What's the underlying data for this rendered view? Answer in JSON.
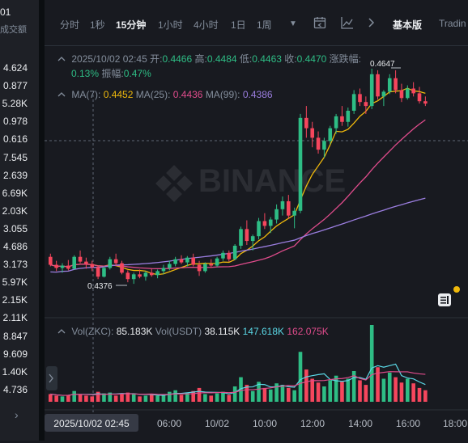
{
  "left_panel": {
    "header": "01",
    "column_label": "成交额",
    "values": [
      "4.624",
      "0.877",
      "5.28K",
      "0.978",
      "0.616",
      "7.545",
      "2.639",
      "6.69K",
      "2.03K",
      "3.055",
      "4.686",
      "3.173",
      "5.97K",
      "2.15K",
      "2.11K",
      "8.847",
      "9.609",
      "1.40K",
      "4.736"
    ]
  },
  "toolbar": {
    "intervals": [
      "分时",
      "1秒",
      "15分钟",
      "1小时",
      "4小时",
      "1日",
      "1周"
    ],
    "active_interval": "15分钟",
    "dropdown_icon": "caret-down-icon",
    "tool_icons": [
      "indicator-settings-icon",
      "chart-type-icon",
      "more-icon"
    ],
    "basic_label": "基本版",
    "tradingview_label": "Tradin"
  },
  "info": {
    "datetime": "2025/10/02 02:45",
    "open_label": "开:",
    "open": "0.4466",
    "high_label": "高:",
    "high": "0.4484",
    "low_label": "低:",
    "low": "0.4463",
    "close_label": "收:",
    "close": "0.4470",
    "change_label": "涨跌幅:",
    "change": "0.13%",
    "amplitude_label": "振幅:",
    "amplitude": "0.47%"
  },
  "ma": {
    "ma7_label": "MA(7):",
    "ma7": "0.4452",
    "ma25_label": "MA(25):",
    "ma25": "0.4436",
    "ma99_label": "MA(99):",
    "ma99": "0.4386"
  },
  "volume_info": {
    "vol_label": "Vol(ZKC):",
    "vol": "85.183K",
    "vol_usdt_label": "Vol(USDT)",
    "vol_usdt": "38.115K",
    "ma_vol_1": "147.618K",
    "ma_vol_2": "162.075K"
  },
  "annotations": {
    "high_marker": "0.4647",
    "low_marker": "0.4376"
  },
  "watermark": "BINANCE",
  "time_axis": {
    "crosshair_label": "2025/10/02 02:45",
    "ticks": [
      "06:00",
      "10/02",
      "10:00",
      "12:00",
      "14:00",
      "16:00",
      "18:00"
    ]
  },
  "colors": {
    "up": "#2ebd85",
    "down": "#f6465d",
    "ma7": "#f0b90b",
    "ma25": "#e04c8c",
    "ma99": "#9b7ee0",
    "background": "#181a20"
  },
  "chart_data": {
    "type": "candlestick",
    "interval": "15分钟",
    "candles_ohlc": [
      [
        0.441,
        0.4414,
        0.4398,
        0.44
      ],
      [
        0.44,
        0.4405,
        0.4392,
        0.4396
      ],
      [
        0.4396,
        0.4402,
        0.439,
        0.4399
      ],
      [
        0.4399,
        0.4406,
        0.4393,
        0.4395
      ],
      [
        0.4395,
        0.4412,
        0.4394,
        0.441
      ],
      [
        0.441,
        0.4418,
        0.4402,
        0.4404
      ],
      [
        0.4404,
        0.4409,
        0.4395,
        0.4401
      ],
      [
        0.4401,
        0.4405,
        0.4392,
        0.4397
      ],
      [
        0.4397,
        0.4399,
        0.4382,
        0.4385
      ],
      [
        0.4385,
        0.4398,
        0.4384,
        0.4396
      ],
      [
        0.4396,
        0.441,
        0.4394,
        0.4407
      ],
      [
        0.4407,
        0.4414,
        0.4399,
        0.4402
      ],
      [
        0.4402,
        0.4405,
        0.4388,
        0.439
      ],
      [
        0.439,
        0.4393,
        0.4378,
        0.4382
      ],
      [
        0.4382,
        0.439,
        0.4376,
        0.4388
      ],
      [
        0.4388,
        0.4394,
        0.4383,
        0.4385
      ],
      [
        0.4385,
        0.4392,
        0.438,
        0.439
      ],
      [
        0.439,
        0.4395,
        0.4385,
        0.4387
      ],
      [
        0.4387,
        0.4394,
        0.4383,
        0.4392
      ],
      [
        0.4392,
        0.44,
        0.4388,
        0.4396
      ],
      [
        0.4396,
        0.4405,
        0.4393,
        0.4401
      ],
      [
        0.4401,
        0.441,
        0.4398,
        0.4407
      ],
      [
        0.4407,
        0.4412,
        0.4401,
        0.4403
      ],
      [
        0.4403,
        0.4411,
        0.4398,
        0.4409
      ],
      [
        0.4409,
        0.4414,
        0.4398,
        0.44
      ],
      [
        0.44,
        0.4405,
        0.4386,
        0.4392
      ],
      [
        0.4392,
        0.4403,
        0.439,
        0.4401
      ],
      [
        0.4401,
        0.4407,
        0.4396,
        0.4399
      ],
      [
        0.4399,
        0.441,
        0.4397,
        0.4408
      ],
      [
        0.4408,
        0.4418,
        0.4405,
        0.4415
      ],
      [
        0.4415,
        0.4418,
        0.4404,
        0.4407
      ],
      [
        0.4407,
        0.4426,
        0.4406,
        0.4424
      ],
      [
        0.4424,
        0.4448,
        0.442,
        0.4445
      ],
      [
        0.4445,
        0.4456,
        0.4425,
        0.443
      ],
      [
        0.443,
        0.4438,
        0.4418,
        0.4436
      ],
      [
        0.4436,
        0.4459,
        0.4432,
        0.4455
      ],
      [
        0.4455,
        0.4465,
        0.4445,
        0.4449
      ],
      [
        0.4449,
        0.446,
        0.444,
        0.4457
      ],
      [
        0.4457,
        0.4476,
        0.4452,
        0.447
      ],
      [
        0.447,
        0.4486,
        0.4462,
        0.448
      ],
      [
        0.448,
        0.4488,
        0.4458,
        0.4462
      ],
      [
        0.4462,
        0.4472,
        0.4446,
        0.4468
      ],
      [
        0.4468,
        0.459,
        0.4465,
        0.4585
      ],
      [
        0.4585,
        0.46,
        0.456,
        0.4572
      ],
      [
        0.4572,
        0.458,
        0.4548,
        0.456
      ],
      [
        0.456,
        0.4568,
        0.454,
        0.4545
      ],
      [
        0.4545,
        0.456,
        0.4535,
        0.4556
      ],
      [
        0.4556,
        0.4575,
        0.4552,
        0.4572
      ],
      [
        0.4572,
        0.459,
        0.4565,
        0.4587
      ],
      [
        0.4587,
        0.46,
        0.4575,
        0.458
      ],
      [
        0.458,
        0.4598,
        0.4574,
        0.4594
      ],
      [
        0.4594,
        0.462,
        0.459,
        0.4615
      ],
      [
        0.4615,
        0.4622,
        0.46,
        0.4605
      ],
      [
        0.4605,
        0.4612,
        0.459,
        0.46
      ],
      [
        0.46,
        0.4647,
        0.4596,
        0.464
      ],
      [
        0.464,
        0.4645,
        0.4608,
        0.4612
      ],
      [
        0.4612,
        0.462,
        0.46,
        0.4618
      ],
      [
        0.4618,
        0.464,
        0.4615,
        0.4635
      ],
      [
        0.4635,
        0.4645,
        0.4616,
        0.462
      ],
      [
        0.462,
        0.4628,
        0.4605,
        0.461
      ],
      [
        0.461,
        0.4626,
        0.4608,
        0.4622
      ],
      [
        0.4622,
        0.463,
        0.4612,
        0.4616
      ],
      [
        0.4616,
        0.4624,
        0.4603,
        0.4606
      ],
      [
        0.4606,
        0.4612,
        0.46,
        0.4603
      ]
    ],
    "volume_relative": [
      0.1,
      0.08,
      0.07,
      0.09,
      0.14,
      0.1,
      0.08,
      0.07,
      0.13,
      0.11,
      0.12,
      0.08,
      0.1,
      0.12,
      0.11,
      0.07,
      0.08,
      0.09,
      0.08,
      0.1,
      0.13,
      0.15,
      0.09,
      0.12,
      0.14,
      0.18,
      0.1,
      0.08,
      0.11,
      0.13,
      0.09,
      0.2,
      0.32,
      0.22,
      0.14,
      0.26,
      0.18,
      0.16,
      0.24,
      0.22,
      0.18,
      0.15,
      0.65,
      0.42,
      0.3,
      0.25,
      0.2,
      0.28,
      0.34,
      0.26,
      0.3,
      0.4,
      0.28,
      0.22,
      1.0,
      0.45,
      0.3,
      0.38,
      0.32,
      0.25,
      0.3,
      0.24,
      0.18,
      0.15
    ],
    "ma_lines": [
      "MA(7)",
      "MA(25)",
      "MA(99)"
    ]
  }
}
